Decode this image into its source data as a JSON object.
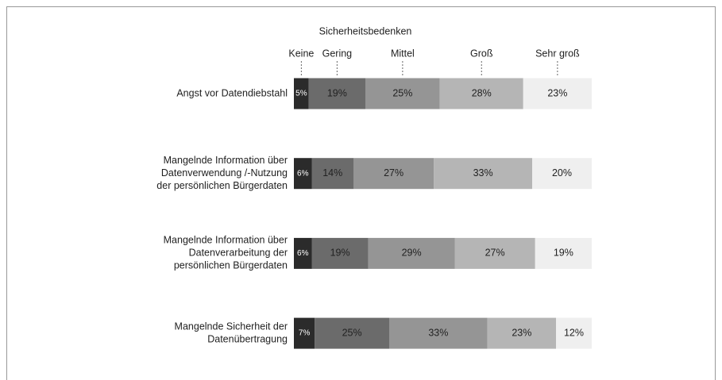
{
  "chart_data": {
    "type": "stacked-bar-horizontal",
    "legend_title": "Sicherheitsbedenken",
    "categories": [
      [
        "Angst vor Datendiebstahl"
      ],
      [
        "Mangelnde Information über",
        "Datenverwendung /-Nutzung",
        "der persönlichen Bürgerdaten"
      ],
      [
        "Mangelnde Information über",
        "Datenverarbeitung der",
        "persönlichen Bürgerdaten"
      ],
      [
        "Mangelnde Sicherheit der",
        "Datenübertragung"
      ]
    ],
    "xlim": [
      0,
      100
    ],
    "legend": "top",
    "series": [
      {
        "name": "Keine",
        "color": "#2b2b2b",
        "values": [
          5,
          6,
          6,
          7
        ],
        "value_labels": [
          "5%",
          "6%",
          "6%",
          "7%"
        ]
      },
      {
        "name": "Gering",
        "color": "#6b6b6b",
        "values": [
          19,
          14,
          19,
          25
        ],
        "value_labels": [
          "19%",
          "14%",
          "19%",
          "25%"
        ]
      },
      {
        "name": "Mittel",
        "color": "#959595",
        "values": [
          25,
          27,
          29,
          33
        ],
        "value_labels": [
          "25%",
          "27%",
          "29%",
          "33%"
        ]
      },
      {
        "name": "Groß",
        "color": "#b5b5b5",
        "values": [
          28,
          33,
          27,
          23
        ],
        "value_labels": [
          "28%",
          "33%",
          "27%",
          "23%"
        ]
      },
      {
        "name": "Sehr groß",
        "color": "#efefef",
        "values": [
          23,
          20,
          19,
          12
        ],
        "value_labels": [
          "23%",
          "20%",
          "19%",
          "12%"
        ]
      }
    ]
  }
}
